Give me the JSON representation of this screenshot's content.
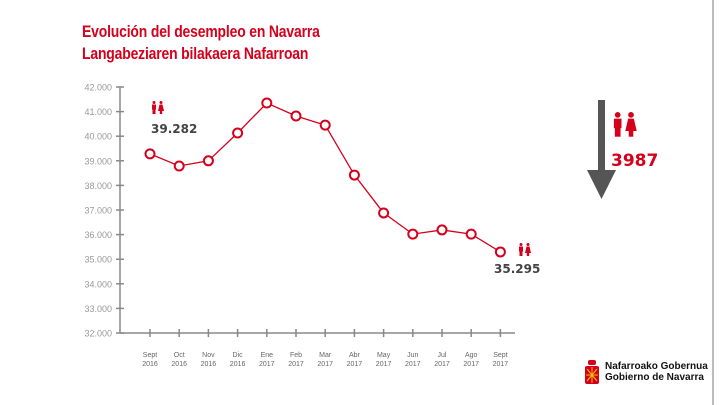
{
  "header": {
    "title_es": "Evolución del desempleo en Navarra",
    "title_eu": "Langabeziaren bilakaera Nafarroan"
  },
  "colors": {
    "accent": "#d6001c",
    "axis": "#888888",
    "arrow": "#555555",
    "label": "#444444"
  },
  "chart_data": {
    "type": "line",
    "categories": [
      [
        "Sept",
        "2016"
      ],
      [
        "Oct",
        "2016"
      ],
      [
        "Nov",
        "2016"
      ],
      [
        "Dic",
        "2016"
      ],
      [
        "Ene",
        "2017"
      ],
      [
        "Feb",
        "2017"
      ],
      [
        "Mar",
        "2017"
      ],
      [
        "Abr",
        "2017"
      ],
      [
        "May",
        "2017"
      ],
      [
        "Jun",
        "2017"
      ],
      [
        "Jul",
        "2017"
      ],
      [
        "Ago",
        "2017"
      ],
      [
        "Sept",
        "2017"
      ]
    ],
    "values": [
      39282,
      38790,
      39000,
      40130,
      41350,
      40820,
      40450,
      38420,
      36880,
      36020,
      36190,
      36020,
      35295
    ],
    "ylim": [
      32000,
      42000
    ],
    "yticks": [
      "32.000",
      "33.000",
      "34.000",
      "35.000",
      "36.000",
      "37.000",
      "38.000",
      "39.000",
      "40.000",
      "41.000",
      "42.000"
    ],
    "annotations": {
      "start": "39.282",
      "end": "35.295",
      "decrease": "3987"
    },
    "grid": false
  },
  "logo": {
    "line1": "Nafarroako Gobernua",
    "line2": "Gobierno de Navarra"
  }
}
